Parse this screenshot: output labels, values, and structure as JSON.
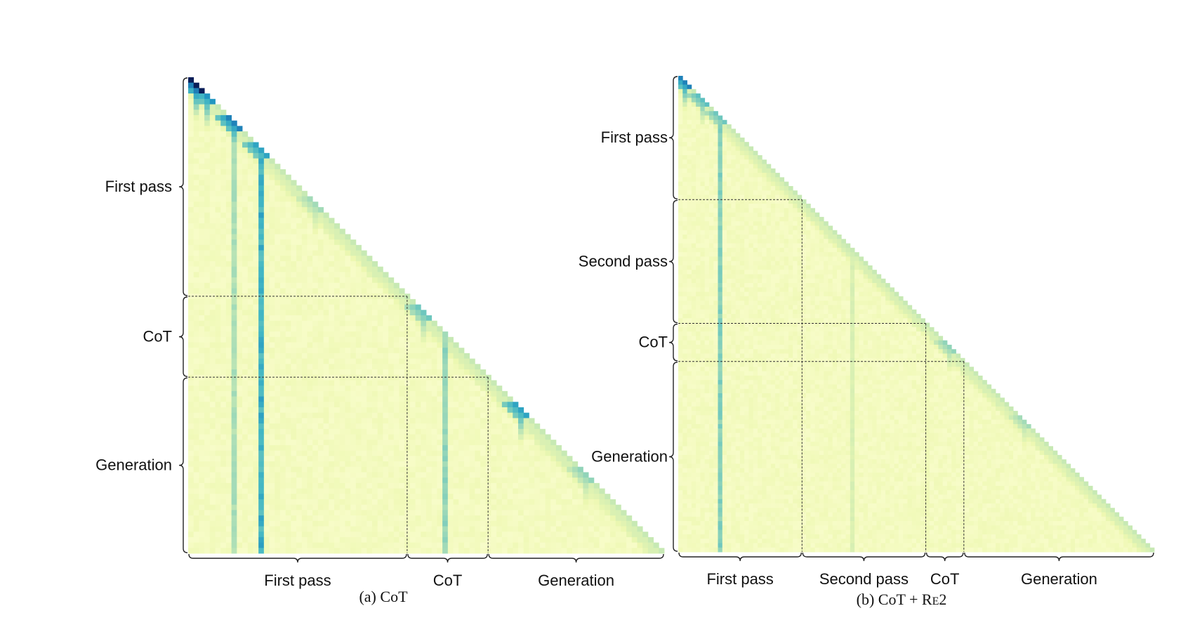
{
  "figure": {
    "colors": {
      "background": "#ffffff",
      "low": "#ffffd9",
      "mid": "#c7e9b4",
      "high": "#41b6c4",
      "max": "#081d58",
      "dashed_lines": "#333333",
      "brace": "#222222"
    },
    "panels": [
      {
        "id": "a",
        "caption_prefix": "(a) ",
        "caption_main": "CoT",
        "caption_sc": "",
        "caption_suffix": "",
        "chart_data": {
          "type": "heatmap",
          "shape": "lower-triangular attention map",
          "colormap": "YlGnBu",
          "segments": [
            {
              "label": "First pass",
              "fraction": 0.46
            },
            {
              "label": "CoT",
              "fraction": 0.17
            },
            {
              "label": "Generation",
              "fraction": 0.37
            }
          ],
          "highlight_columns": [
            {
              "position": 0.09,
              "strength": 0.38
            },
            {
              "position": 0.155,
              "strength": 0.7
            },
            {
              "position": 0.535,
              "strength": 0.45
            }
          ],
          "diagonal_hotspots": [
            {
              "position": 0.01,
              "strength": 1.0
            },
            {
              "position": 0.03,
              "strength": 0.8
            },
            {
              "position": 0.09,
              "strength": 0.85
            },
            {
              "position": 0.155,
              "strength": 0.75
            },
            {
              "position": 0.26,
              "strength": 0.4
            },
            {
              "position": 0.49,
              "strength": 0.55
            },
            {
              "position": 0.7,
              "strength": 0.75
            },
            {
              "position": 0.84,
              "strength": 0.45
            }
          ]
        }
      },
      {
        "id": "b",
        "caption_prefix": "(b) ",
        "caption_main": "CoT + R",
        "caption_sc": "E",
        "caption_suffix": "2",
        "chart_data": {
          "type": "heatmap",
          "shape": "lower-triangular attention map",
          "colormap": "YlGnBu",
          "segments": [
            {
              "label": "First pass",
              "fraction": 0.26
            },
            {
              "label": "Second pass",
              "fraction": 0.26
            },
            {
              "label": "CoT",
              "fraction": 0.08
            },
            {
              "label": "Generation",
              "fraction": 0.4
            }
          ],
          "highlight_columns": [
            {
              "position": 0.08,
              "strength": 0.5
            },
            {
              "position": 0.36,
              "strength": 0.22
            },
            {
              "position": 0.52,
              "strength": 0.1
            }
          ],
          "diagonal_hotspots": [
            {
              "position": 0.01,
              "strength": 0.85
            },
            {
              "position": 0.05,
              "strength": 0.6
            },
            {
              "position": 0.08,
              "strength": 0.55
            },
            {
              "position": 0.36,
              "strength": 0.3
            },
            {
              "position": 0.57,
              "strength": 0.45
            },
            {
              "position": 0.73,
              "strength": 0.4
            }
          ]
        }
      }
    ]
  }
}
